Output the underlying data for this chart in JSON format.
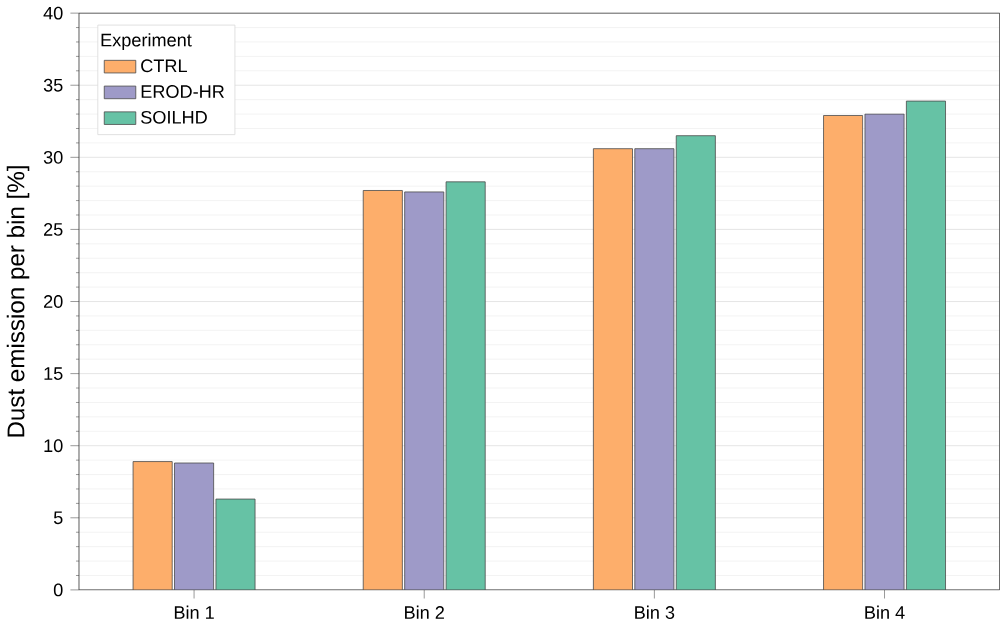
{
  "chart_data": {
    "type": "bar",
    "ylabel": "Dust emission per bin [%]",
    "legend_title": "Experiment",
    "categories": [
      "Bin 1",
      "Bin 2",
      "Bin 3",
      "Bin 4"
    ],
    "series": [
      {
        "name": "CTRL",
        "color": "#fdae6b",
        "values": [
          8.9,
          27.7,
          30.6,
          32.9
        ]
      },
      {
        "name": "EROD-HR",
        "color": "#9e9ac8",
        "values": [
          8.8,
          27.6,
          30.6,
          33.0
        ]
      },
      {
        "name": "SOILHD",
        "color": "#66c2a5",
        "values": [
          6.3,
          28.3,
          31.5,
          33.9
        ]
      }
    ],
    "ylim": [
      0,
      40
    ],
    "yticks": [
      0,
      5,
      10,
      15,
      20,
      25,
      30,
      35,
      40
    ],
    "grid": "y",
    "legend": "top left"
  }
}
